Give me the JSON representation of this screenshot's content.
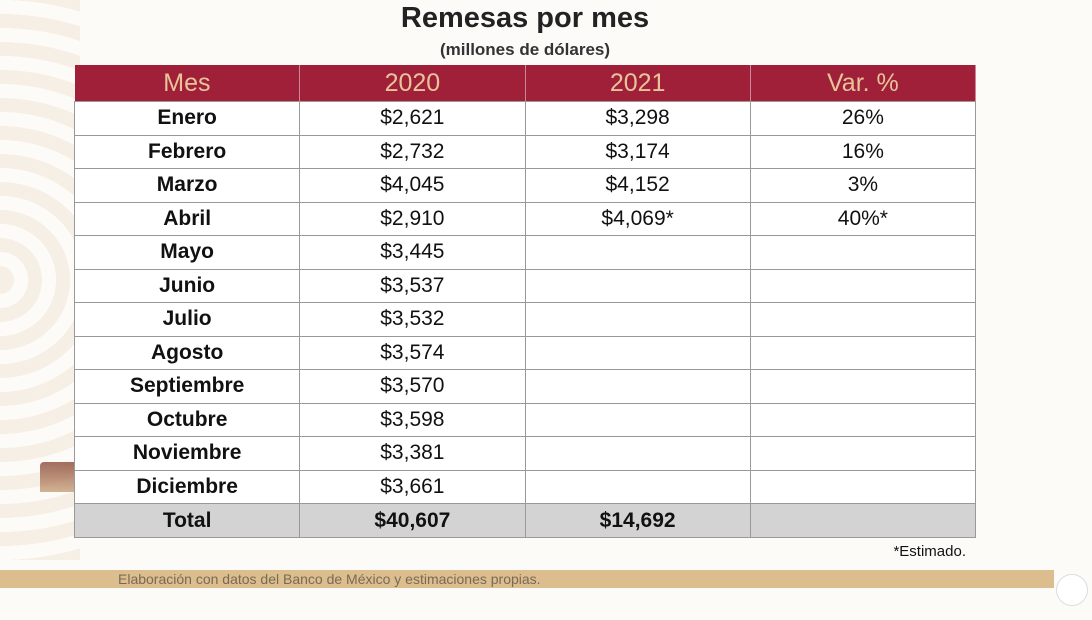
{
  "title": "Remesas por mes",
  "subtitle": "(millones de dólares)",
  "table": {
    "headers": [
      "Mes",
      "2020",
      "2021",
      "Var. %"
    ],
    "rows": [
      [
        "Enero",
        "$2,621",
        "$3,298",
        "26%"
      ],
      [
        "Febrero",
        "$2,732",
        "$3,174",
        "16%"
      ],
      [
        "Marzo",
        "$4,045",
        "$4,152",
        "3%"
      ],
      [
        "Abril",
        "$2,910",
        "$4,069*",
        "40%*"
      ],
      [
        "Mayo",
        "$3,445",
        "",
        ""
      ],
      [
        "Junio",
        "$3,537",
        "",
        ""
      ],
      [
        "Julio",
        "$3,532",
        "",
        ""
      ],
      [
        "Agosto",
        "$3,574",
        "",
        ""
      ],
      [
        "Septiembre",
        "$3,570",
        "",
        ""
      ],
      [
        "Octubre",
        "$3,598",
        "",
        ""
      ],
      [
        "Noviembre",
        "$3,381",
        "",
        ""
      ],
      [
        "Diciembre",
        "$3,661",
        "",
        ""
      ]
    ],
    "total": [
      "Total",
      "$40,607",
      "$14,692",
      ""
    ]
  },
  "note": "*Estimado.",
  "source": "Elaboración con datos del Banco de México y estimaciones propias.",
  "colors": {
    "header_bg": "#a0203a",
    "header_text": "#e8c49a",
    "total_bg": "#d3d3d3",
    "band": "#dbbd8e"
  }
}
